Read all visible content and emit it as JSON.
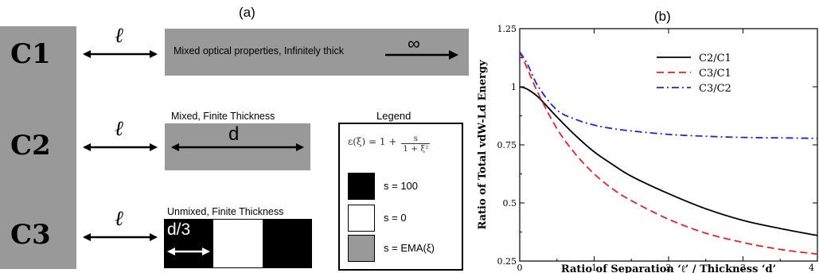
{
  "panel_a": {
    "label": "(a)",
    "configs": [
      {
        "name": "C1",
        "sep_symbol": "ℓ",
        "slab_text": "Mixed optical properties, Infinitely thick",
        "inf_symbol": "∞"
      },
      {
        "name": "C2",
        "sep_symbol": "ℓ",
        "title": "Mixed, Finite Thickness",
        "thickness_symbol": "d"
      },
      {
        "name": "C3",
        "sep_symbol": "ℓ",
        "title": "Unmixed, Finite Thickness",
        "thickness_symbol": "d/3"
      }
    ],
    "legend": {
      "title": "Legend",
      "formula_lhs": "ε(ξ) = 1 +",
      "formula_num": "s",
      "formula_den": "1 + ξ²",
      "items": [
        {
          "label": "s = 100",
          "color": "#000000"
        },
        {
          "label": "s = 0",
          "color": "#ffffff"
        },
        {
          "label": "s = EMA(ξ)",
          "color": "#999999"
        }
      ]
    },
    "colors": {
      "grey": "#999999"
    }
  },
  "panel_b": {
    "label": "(b)",
    "chart_data": {
      "type": "line",
      "xlabel": "Ratio of Separation ‘ℓ’ / Thickness ‘d’",
      "ylabel": "Ratio of Total vdW-Ld Energy",
      "xlim": [
        0,
        4
      ],
      "ylim": [
        0.25,
        1.25
      ],
      "xticks": [
        "0",
        "1",
        "2",
        "3",
        "4"
      ],
      "yticks": [
        "0.25",
        "0.5",
        "0.75",
        "1",
        "1.25"
      ],
      "legend_position": "top-right",
      "series": [
        {
          "name": "C2/C1",
          "color": "#000000",
          "dash": "solid",
          "x": [
            0,
            0.1,
            0.25,
            0.5,
            0.75,
            1,
            1.25,
            1.5,
            2,
            2.5,
            3,
            3.5,
            4
          ],
          "y": [
            1.0,
            0.99,
            0.955,
            0.87,
            0.79,
            0.72,
            0.665,
            0.615,
            0.54,
            0.475,
            0.425,
            0.39,
            0.36
          ]
        },
        {
          "name": "C3/C1",
          "color": "#e8202a",
          "dash": "dashed",
          "x": [
            0,
            0.1,
            0.25,
            0.5,
            0.75,
            1,
            1.25,
            1.5,
            2,
            2.5,
            3,
            3.5,
            4
          ],
          "y": [
            1.15,
            1.08,
            0.97,
            0.82,
            0.71,
            0.625,
            0.56,
            0.51,
            0.43,
            0.37,
            0.33,
            0.3,
            0.28
          ]
        },
        {
          "name": "C3/C2",
          "color": "#2323d4",
          "dash": "dashdot",
          "x": [
            0,
            0.1,
            0.25,
            0.5,
            0.75,
            1,
            1.25,
            1.5,
            2,
            2.5,
            3,
            3.5,
            4
          ],
          "y": [
            1.15,
            1.1,
            1.0,
            0.9,
            0.86,
            0.835,
            0.82,
            0.81,
            0.795,
            0.787,
            0.782,
            0.78,
            0.778
          ]
        }
      ]
    }
  }
}
